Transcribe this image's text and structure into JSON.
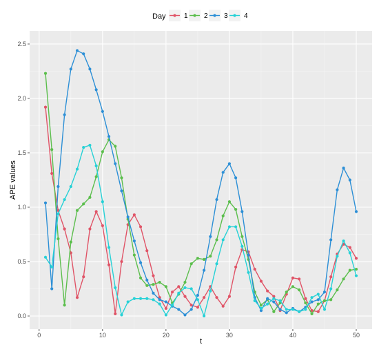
{
  "chart_data": {
    "type": "line",
    "xlabel": "t",
    "ylabel": "APE values",
    "xlim": [
      -1.5,
      52.5
    ],
    "ylim": [
      -0.12,
      2.62
    ],
    "xticks": [
      0,
      10,
      20,
      30,
      40,
      50
    ],
    "yticks": [
      0.0,
      0.5,
      1.0,
      1.5,
      2.0,
      2.5
    ],
    "xtick_labels": [
      "0",
      "10",
      "20",
      "30",
      "40",
      "50"
    ],
    "ytick_labels": [
      "0.0",
      "0.5",
      "1.0",
      "1.5",
      "2.0",
      "2.5"
    ],
    "grid": true,
    "panel_background": "#ebebeb",
    "legend": {
      "title": "Day",
      "position": "top"
    },
    "x": [
      1,
      2,
      3,
      4,
      5,
      6,
      7,
      8,
      9,
      10,
      11,
      12,
      13,
      14,
      15,
      16,
      17,
      18,
      19,
      20,
      21,
      22,
      23,
      24,
      25,
      26,
      27,
      28,
      29,
      30,
      31,
      32,
      33,
      34,
      35,
      36,
      37,
      38,
      39,
      40,
      41,
      42,
      43,
      44,
      45,
      46,
      47,
      48,
      49,
      50
    ],
    "series": [
      {
        "name": "1",
        "color": "#e05467",
        "values": [
          1.92,
          1.31,
          0.97,
          0.8,
          0.58,
          0.17,
          0.36,
          0.8,
          0.96,
          0.83,
          0.47,
          0.02,
          0.5,
          0.84,
          0.93,
          0.82,
          0.6,
          0.37,
          0.17,
          0.07,
          0.22,
          0.27,
          0.18,
          0.1,
          0.08,
          0.17,
          0.27,
          0.17,
          0.09,
          0.18,
          0.45,
          0.61,
          0.59,
          0.43,
          0.32,
          0.23,
          0.18,
          0.05,
          0.2,
          0.35,
          0.34,
          0.16,
          0.05,
          0.04,
          0.14,
          0.36,
          0.57,
          0.66,
          0.63,
          0.53
        ]
      },
      {
        "name": "2",
        "color": "#5bbe4c",
        "values": [
          2.23,
          1.53,
          0.71,
          0.1,
          0.68,
          0.97,
          1.03,
          1.09,
          1.28,
          1.51,
          1.62,
          1.56,
          1.27,
          0.89,
          0.56,
          0.35,
          0.28,
          0.29,
          0.31,
          0.27,
          0.12,
          0.2,
          0.31,
          0.48,
          0.53,
          0.52,
          0.55,
          0.7,
          0.92,
          1.05,
          0.98,
          0.73,
          0.52,
          0.22,
          0.1,
          0.15,
          0.04,
          0.12,
          0.22,
          0.27,
          0.24,
          0.12,
          0.02,
          0.11,
          0.14,
          0.15,
          0.24,
          0.34,
          0.42,
          0.43
        ]
      },
      {
        "name": "3",
        "color": "#2c8fd6",
        "values": [
          1.04,
          0.25,
          1.19,
          1.85,
          2.27,
          2.44,
          2.41,
          2.27,
          2.08,
          1.88,
          1.65,
          1.4,
          1.15,
          0.91,
          0.69,
          0.49,
          0.33,
          0.21,
          0.15,
          0.13,
          0.09,
          0.06,
          0.01,
          0.06,
          0.19,
          0.42,
          0.73,
          1.07,
          1.32,
          1.4,
          1.27,
          0.96,
          0.56,
          0.17,
          0.05,
          0.16,
          0.13,
          0.06,
          0.03,
          0.07,
          0.04,
          0.08,
          0.13,
          0.15,
          0.22,
          0.7,
          1.16,
          1.36,
          1.25,
          0.96
        ]
      },
      {
        "name": "4",
        "color": "#26d1d6",
        "values": [
          0.54,
          0.45,
          0.94,
          1.07,
          1.19,
          1.35,
          1.55,
          1.57,
          1.38,
          1.05,
          0.63,
          0.26,
          0.01,
          0.13,
          0.16,
          0.16,
          0.16,
          0.15,
          0.11,
          0.01,
          0.1,
          0.21,
          0.26,
          0.25,
          0.15,
          0.0,
          0.23,
          0.48,
          0.7,
          0.82,
          0.82,
          0.64,
          0.4,
          0.14,
          0.07,
          0.11,
          0.16,
          0.14,
          0.06,
          0.06,
          0.04,
          0.06,
          0.17,
          0.2,
          0.06,
          0.25,
          0.55,
          0.69,
          0.58,
          0.37
        ]
      }
    ]
  }
}
